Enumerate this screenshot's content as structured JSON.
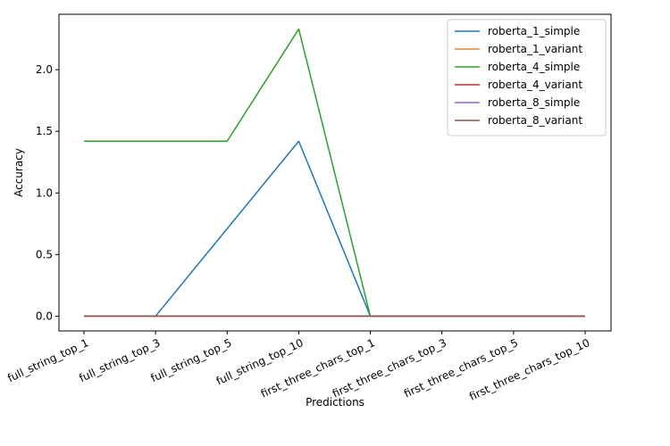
{
  "chart_data": {
    "type": "line",
    "title": "",
    "xlabel": "Predictions",
    "ylabel": "Accuracy",
    "categories": [
      "full_string_top_1",
      "full_string_top_3",
      "full_string_top_5",
      "full_string_top_10",
      "first_three_chars_top_1",
      "first_three_chars_top_3",
      "first_three_chars_top_5",
      "first_three_chars_top_10"
    ],
    "ylim": [
      -0.12,
      2.45
    ],
    "yticks": [
      "0.0",
      "0.5",
      "1.0",
      "1.5",
      "2.0"
    ],
    "grid": false,
    "legend_position": "top-right",
    "series": [
      {
        "name": "roberta_1_simple",
        "color": "#1f77b4",
        "values": [
          0,
          0,
          0.71,
          1.42,
          0,
          0,
          0,
          0
        ]
      },
      {
        "name": "roberta_1_variant",
        "color": "#ff7f0e",
        "values": [
          0,
          0,
          0,
          0,
          0,
          0,
          0,
          0
        ]
      },
      {
        "name": "roberta_4_simple",
        "color": "#2ca02c",
        "values": [
          1.42,
          1.42,
          1.42,
          2.33,
          0,
          0,
          0,
          0
        ]
      },
      {
        "name": "roberta_4_variant",
        "color": "#d62728",
        "values": [
          0,
          0,
          0,
          0,
          0,
          0,
          0,
          0
        ]
      },
      {
        "name": "roberta_8_simple",
        "color": "#9467bd",
        "values": [
          0,
          0,
          0,
          0,
          0,
          0,
          0,
          0
        ]
      },
      {
        "name": "roberta_8_variant",
        "color": "#8c564b",
        "values": [
          0,
          0,
          0,
          0,
          0,
          0,
          0,
          0
        ]
      }
    ]
  }
}
